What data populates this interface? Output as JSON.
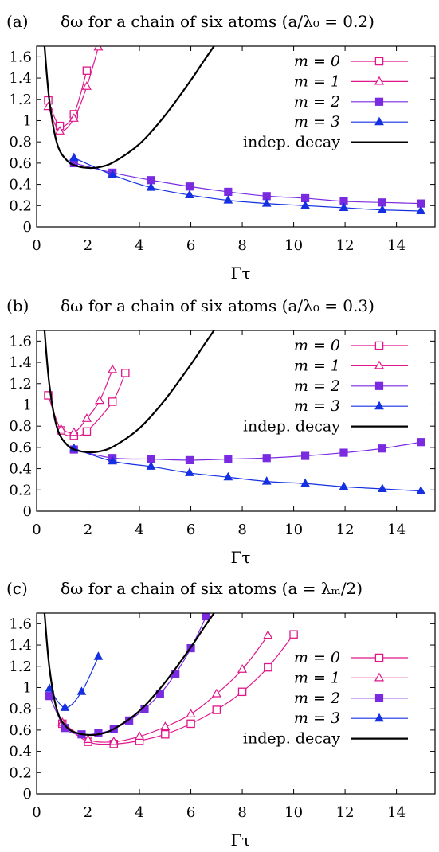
{
  "chart_data": [
    {
      "type": "line",
      "panel_label": "(a)",
      "title": "δω for a chain of six atoms (a/λ₀ = 0.2)",
      "xlabel": "Γτ",
      "ylabel": "",
      "xlim": [
        0,
        15.5
      ],
      "ylim": [
        0,
        1.7
      ],
      "xticks": [
        0,
        2,
        4,
        6,
        8,
        10,
        12,
        14
      ],
      "yticks": [
        0,
        0.2,
        0.4,
        0.6,
        0.8,
        1,
        1.2,
        1.4,
        1.6
      ],
      "grid": false,
      "legend_position": "top-right",
      "series": [
        {
          "name": "m = 0",
          "color": "#e0168a",
          "marker": "open-square",
          "x": [
            0.45,
            0.9,
            1.45,
            1.95
          ],
          "y": [
            1.19,
            0.95,
            1.06,
            1.47
          ]
        },
        {
          "name": "m = 1",
          "color": "#e0168a",
          "marker": "open-triangle",
          "x": [
            0.45,
            0.9,
            1.45,
            1.95,
            2.4
          ],
          "y": [
            1.13,
            0.9,
            1.02,
            1.32,
            1.69
          ]
        },
        {
          "name": "m = 2",
          "color": "#7a2be0",
          "marker": "filled-square",
          "x": [
            1.45,
            2.95,
            4.45,
            5.95,
            7.45,
            8.95,
            10.45,
            11.95,
            13.45,
            14.95
          ],
          "y": [
            0.6,
            0.51,
            0.44,
            0.38,
            0.33,
            0.29,
            0.27,
            0.24,
            0.23,
            0.22
          ]
        },
        {
          "name": "m = 3",
          "color": "#1530e0",
          "marker": "filled-triangle",
          "x": [
            1.45,
            2.95,
            4.45,
            5.95,
            7.45,
            8.95,
            10.45,
            11.95,
            13.45,
            14.95
          ],
          "y": [
            0.65,
            0.49,
            0.37,
            0.3,
            0.25,
            0.22,
            0.2,
            0.18,
            0.16,
            0.15
          ]
        },
        {
          "name": "indep. decay",
          "color": "#000000",
          "marker": "none",
          "x": [
            0.3,
            0.5,
            0.8,
            1.2,
            1.6,
            2.0,
            2.4,
            3,
            4,
            5,
            6,
            6.5,
            6.9
          ],
          "y": [
            1.72,
            1.18,
            0.78,
            0.62,
            0.57,
            0.555,
            0.56,
            0.61,
            0.78,
            1.05,
            1.38,
            1.56,
            1.7
          ]
        }
      ]
    },
    {
      "type": "line",
      "panel_label": "(b)",
      "title": "δω for a chain of six atoms (a/λ₀ = 0.3)",
      "xlabel": "Γτ",
      "ylabel": "",
      "xlim": [
        0,
        15.5
      ],
      "ylim": [
        0,
        1.7
      ],
      "xticks": [
        0,
        2,
        4,
        6,
        8,
        10,
        12,
        14
      ],
      "yticks": [
        0,
        0.2,
        0.4,
        0.6,
        0.8,
        1,
        1.2,
        1.4,
        1.6
      ],
      "grid": false,
      "legend_position": "top-right",
      "series": [
        {
          "name": "m = 0",
          "color": "#e0168a",
          "marker": "open-square",
          "x": [
            0.45,
            0.95,
            1.45,
            1.95,
            2.95,
            3.45
          ],
          "y": [
            1.09,
            0.76,
            0.71,
            0.75,
            1.03,
            1.3
          ]
        },
        {
          "name": "m = 1",
          "color": "#e0168a",
          "marker": "open-triangle",
          "x": [
            0.95,
            1.45,
            1.95,
            2.45,
            2.95
          ],
          "y": [
            0.77,
            0.74,
            0.87,
            1.04,
            1.33
          ]
        },
        {
          "name": "m = 2",
          "color": "#7a2be0",
          "marker": "filled-square",
          "x": [
            1.45,
            2.95,
            4.45,
            5.95,
            7.45,
            8.95,
            10.45,
            11.95,
            13.45,
            14.95
          ],
          "y": [
            0.58,
            0.5,
            0.49,
            0.48,
            0.49,
            0.5,
            0.52,
            0.55,
            0.59,
            0.65
          ]
        },
        {
          "name": "m = 3",
          "color": "#1530e0",
          "marker": "filled-triangle",
          "x": [
            1.45,
            2.95,
            4.45,
            5.95,
            7.45,
            8.95,
            10.45,
            11.95,
            13.45,
            14.95
          ],
          "y": [
            0.59,
            0.47,
            0.42,
            0.36,
            0.32,
            0.28,
            0.26,
            0.23,
            0.21,
            0.19
          ]
        },
        {
          "name": "indep. decay",
          "color": "#000000",
          "marker": "none",
          "x": [
            0.3,
            0.5,
            0.8,
            1.2,
            1.6,
            2.0,
            2.4,
            3,
            4,
            5,
            6,
            6.5,
            6.9
          ],
          "y": [
            1.72,
            1.18,
            0.78,
            0.62,
            0.57,
            0.555,
            0.56,
            0.61,
            0.78,
            1.05,
            1.38,
            1.56,
            1.7
          ]
        }
      ]
    },
    {
      "type": "line",
      "panel_label": "(c)",
      "title": "δω for a chain of six atoms (a = λₘ/2)",
      "xlabel": "Γτ",
      "ylabel": "",
      "xlim": [
        0,
        15.5
      ],
      "ylim": [
        0,
        1.7
      ],
      "xticks": [
        0,
        2,
        4,
        6,
        8,
        10,
        12,
        14
      ],
      "yticks": [
        0,
        0.2,
        0.4,
        0.6,
        0.8,
        1,
        1.2,
        1.4,
        1.6
      ],
      "grid": false,
      "legend_position": "bottom-right",
      "series": [
        {
          "name": "m = 0",
          "color": "#e0168a",
          "marker": "open-square",
          "x": [
            1.0,
            2.0,
            3.0,
            4.0,
            5.0,
            6.0,
            7.0,
            8.0,
            9.0,
            10.0
          ],
          "y": [
            0.66,
            0.49,
            0.47,
            0.5,
            0.56,
            0.66,
            0.79,
            0.96,
            1.19,
            1.5
          ]
        },
        {
          "name": "m = 1",
          "color": "#e0168a",
          "marker": "open-triangle",
          "x": [
            1.0,
            2.0,
            3.0,
            4.0,
            5.0,
            6.0,
            7.0,
            8.0,
            9.0
          ],
          "y": [
            0.67,
            0.51,
            0.49,
            0.54,
            0.63,
            0.75,
            0.94,
            1.17,
            1.49
          ]
        },
        {
          "name": "m = 2",
          "color": "#7a2be0",
          "marker": "filled-square",
          "x": [
            0.5,
            1.1,
            1.75,
            2.4,
            3.0,
            3.6,
            4.2,
            4.8,
            5.4,
            6.0,
            6.6
          ],
          "y": [
            0.92,
            0.62,
            0.56,
            0.57,
            0.61,
            0.69,
            0.8,
            0.94,
            1.13,
            1.37,
            1.67
          ]
        },
        {
          "name": "m = 3",
          "color": "#1530e0",
          "marker": "filled-triangle",
          "x": [
            0.5,
            1.1,
            1.75,
            2.4
          ],
          "y": [
            0.99,
            0.81,
            0.96,
            1.29
          ]
        },
        {
          "name": "indep. decay",
          "color": "#000000",
          "marker": "none",
          "x": [
            0.3,
            0.5,
            0.8,
            1.2,
            1.6,
            2.0,
            2.4,
            3,
            4,
            5,
            6,
            6.5,
            6.9
          ],
          "y": [
            1.72,
            1.18,
            0.78,
            0.62,
            0.57,
            0.555,
            0.56,
            0.61,
            0.78,
            1.05,
            1.38,
            1.56,
            1.7
          ]
        }
      ]
    }
  ]
}
